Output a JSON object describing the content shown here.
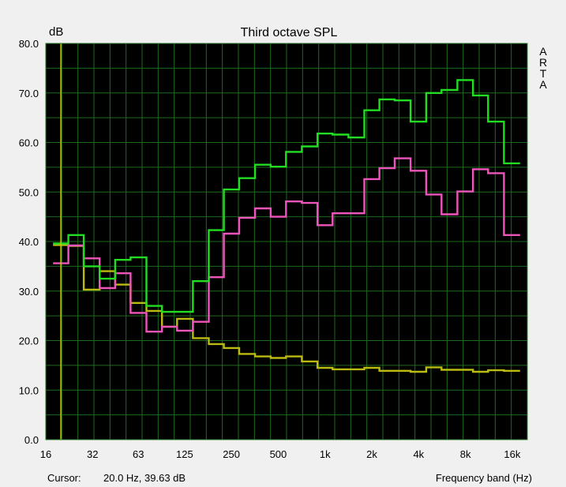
{
  "chart_data": {
    "type": "line",
    "title": "Third octave SPL",
    "ylabel": "dB",
    "xlabel": "Frequency band (Hz)",
    "side_label": [
      "A",
      "R",
      "T",
      "A"
    ],
    "ylim": [
      0,
      80
    ],
    "yticks": [
      "0.0",
      "10.0",
      "20.0",
      "30.0",
      "40.0",
      "50.0",
      "60.0",
      "70.0",
      "80.0"
    ],
    "xticks": [
      "16",
      "32",
      "63",
      "125",
      "250",
      "500",
      "1k",
      "2k",
      "4k",
      "8k",
      "16k"
    ],
    "x_scale": "log",
    "grid": true,
    "bands": [
      "20",
      "25",
      "31.5",
      "40",
      "50",
      "63",
      "80",
      "100",
      "125",
      "160",
      "200",
      "250",
      "315",
      "400",
      "500",
      "630",
      "800",
      "1k",
      "1.25k",
      "1.6k",
      "2k",
      "2.5k",
      "3.15k",
      "4k",
      "5k",
      "6.3k",
      "8k",
      "10k",
      "12.5k",
      "16k"
    ],
    "series": [
      {
        "color": "#22dd22",
        "values": [
          39.6,
          41.3,
          35.0,
          32.5,
          36.3,
          36.8,
          27.0,
          25.8,
          25.8,
          32.0,
          42.3,
          50.5,
          52.8,
          55.5,
          55.1,
          58.1,
          59.2,
          61.8,
          61.6,
          61.0,
          66.5,
          68.7,
          68.5,
          64.2,
          70.0,
          70.6,
          72.6,
          69.5,
          64.2,
          55.8
        ]
      },
      {
        "color": "#ee55bb",
        "values": [
          35.6,
          39.2,
          36.6,
          30.6,
          33.6,
          25.6,
          21.8,
          22.8,
          22.0,
          23.8,
          32.8,
          41.6,
          44.8,
          46.7,
          45.0,
          48.1,
          47.8,
          43.3,
          45.7,
          45.7,
          52.6,
          54.8,
          56.8,
          54.3,
          49.5,
          45.5,
          50.1,
          54.6,
          53.8,
          41.3
        ]
      },
      {
        "color": "#bbbb11",
        "values": [
          39.3,
          39.1,
          30.3,
          34.0,
          31.3,
          27.6,
          26.0,
          22.8,
          24.4,
          20.5,
          19.3,
          18.5,
          17.3,
          16.8,
          16.5,
          16.8,
          15.8,
          14.5,
          14.2,
          14.2,
          14.5,
          13.9,
          13.9,
          13.7,
          14.6,
          14.1,
          14.1,
          13.7,
          14.0,
          13.9
        ]
      }
    ],
    "cursor_x_hz": 20,
    "cursor_color": "#cccc00"
  },
  "status": {
    "cursor_label": "Cursor:",
    "cursor_value": "20.0 Hz, 39.63 dB"
  }
}
